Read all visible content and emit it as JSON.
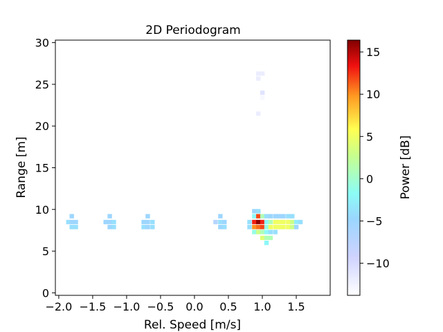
{
  "chart_data": {
    "type": "heatmap",
    "title": "2D Periodogram",
    "xlabel": "Rel. Speed [m/s]",
    "ylabel": "Range [m]",
    "xlim": [
      -2.05,
      2.0
    ],
    "ylim": [
      -0.3,
      30.3
    ],
    "xticks": [
      "−2.0",
      "−1.5",
      "−1.0",
      "−0.5",
      "0.0",
      "0.5",
      "1.0",
      "1.5"
    ],
    "xtick_values": [
      -2.0,
      -1.5,
      -1.0,
      -0.5,
      0.0,
      0.5,
      1.0,
      1.5
    ],
    "yticks": [
      "0",
      "5",
      "10",
      "15",
      "20",
      "25",
      "30"
    ],
    "ytick_values": [
      0,
      5,
      10,
      15,
      20,
      25,
      30
    ],
    "colorbar": {
      "label": "Power [dB]",
      "colormap": "jet",
      "range": [
        -13.8,
        16.4
      ],
      "ticks": [
        "−10",
        "−5",
        "0",
        "5",
        "10",
        "15"
      ],
      "tick_values": [
        -10,
        -5,
        0,
        5,
        10,
        15
      ]
    },
    "cell_size": {
      "dv": 0.0625,
      "dr": 0.5
    },
    "points": [
      [
        -1.81,
        9.2,
        -5
      ],
      [
        -1.86,
        8.5,
        -4
      ],
      [
        -1.81,
        8.5,
        -5
      ],
      [
        -1.75,
        8.5,
        -5
      ],
      [
        -1.81,
        7.9,
        -4
      ],
      [
        -1.75,
        7.9,
        -4
      ],
      [
        -1.31,
        8.5,
        -5
      ],
      [
        -1.25,
        8.5,
        -5
      ],
      [
        -1.19,
        8.5,
        -4
      ],
      [
        -1.25,
        9.2,
        -5
      ],
      [
        -1.25,
        7.9,
        -5
      ],
      [
        -1.19,
        7.9,
        -4
      ],
      [
        -0.69,
        9.2,
        -5
      ],
      [
        -0.75,
        8.5,
        -5
      ],
      [
        -0.69,
        8.5,
        -5
      ],
      [
        -0.62,
        8.5,
        -4
      ],
      [
        -0.75,
        7.9,
        -4
      ],
      [
        -0.69,
        7.9,
        -5
      ],
      [
        -0.62,
        7.9,
        -4
      ],
      [
        0.31,
        8.5,
        -7
      ],
      [
        0.38,
        9.2,
        -5
      ],
      [
        0.38,
        8.5,
        -4
      ],
      [
        0.44,
        8.5,
        -5
      ],
      [
        0.38,
        7.9,
        -5
      ],
      [
        0.44,
        7.9,
        -4
      ],
      [
        0.88,
        9.8,
        -5
      ],
      [
        0.94,
        9.8,
        -4
      ],
      [
        0.88,
        9.2,
        -2
      ],
      [
        0.94,
        9.2,
        12
      ],
      [
        1.0,
        9.2,
        1
      ],
      [
        1.06,
        9.2,
        -4
      ],
      [
        1.12,
        9.2,
        -5
      ],
      [
        1.19,
        9.2,
        -5
      ],
      [
        1.25,
        9.2,
        -5
      ],
      [
        1.31,
        9.2,
        -5
      ],
      [
        1.38,
        9.2,
        -4
      ],
      [
        1.44,
        9.2,
        -4
      ],
      [
        0.81,
        8.5,
        -4
      ],
      [
        0.88,
        8.5,
        13
      ],
      [
        0.94,
        8.5,
        16
      ],
      [
        1.0,
        8.5,
        13
      ],
      [
        1.06,
        8.5,
        -2
      ],
      [
        1.12,
        8.5,
        1
      ],
      [
        1.19,
        8.5,
        5
      ],
      [
        1.25,
        8.5,
        5
      ],
      [
        1.31,
        8.5,
        5
      ],
      [
        1.38,
        8.5,
        5
      ],
      [
        1.44,
        8.5,
        3
      ],
      [
        1.5,
        8.5,
        -3
      ],
      [
        1.56,
        8.5,
        -4
      ],
      [
        0.81,
        7.9,
        -4
      ],
      [
        0.88,
        7.9,
        10
      ],
      [
        0.94,
        7.9,
        11
      ],
      [
        1.0,
        7.9,
        12
      ],
      [
        1.06,
        7.9,
        -1
      ],
      [
        1.12,
        7.9,
        5
      ],
      [
        1.19,
        7.9,
        5
      ],
      [
        1.25,
        7.9,
        5
      ],
      [
        1.31,
        7.9,
        5
      ],
      [
        1.38,
        7.9,
        5
      ],
      [
        1.44,
        7.9,
        3
      ],
      [
        1.5,
        7.9,
        -5
      ],
      [
        0.88,
        7.3,
        -1
      ],
      [
        0.94,
        7.3,
        3
      ],
      [
        1.0,
        7.3,
        1
      ],
      [
        1.06,
        7.3,
        -2
      ],
      [
        1.12,
        7.3,
        -4
      ],
      [
        1.19,
        7.3,
        -4
      ],
      [
        1.0,
        6.6,
        4
      ],
      [
        1.06,
        6.6,
        1
      ],
      [
        1.12,
        6.6,
        1
      ],
      [
        1.06,
        6.0,
        -2
      ],
      [
        0.94,
        26.3,
        -12
      ],
      [
        1.0,
        26.3,
        -12
      ],
      [
        0.94,
        25.7,
        -12
      ],
      [
        1.0,
        24.0,
        -11
      ],
      [
        1.0,
        23.4,
        -13
      ],
      [
        0.94,
        21.5,
        -12
      ]
    ]
  }
}
